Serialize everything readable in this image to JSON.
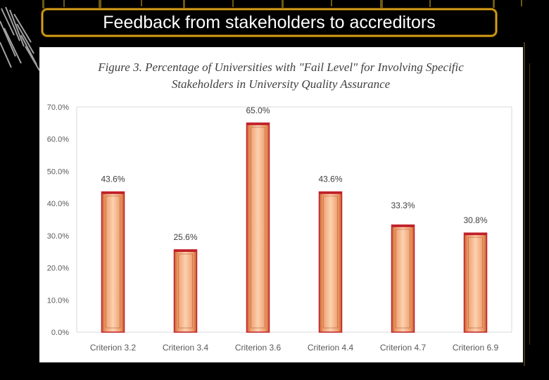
{
  "slide": {
    "title": "Feedback from stakeholders to accreditors"
  },
  "colors": {
    "background": "#000000",
    "title_border": "#d9a21c",
    "bar_fill": "#f0a070",
    "bar_edge": "#c0202a",
    "accent_decor": "#c8a020"
  },
  "figure": {
    "caption_line1": "Figure 3. Percentage of Universities with \"Fail Level\" for Involving Specific",
    "caption_line2": "Stakeholders in University Quality Assurance"
  },
  "chart_data": {
    "type": "bar",
    "title": "Figure 3. Percentage of Universities with \"Fail Level\" for Involving Specific Stakeholders in University Quality Assurance",
    "categories": [
      "Criterion 3.2",
      "Criterion 3.4",
      "Criterion 3.6",
      "Criterion 4.4",
      "Criterion 4.7",
      "Criterion 6.9"
    ],
    "values": [
      43.6,
      25.6,
      65.0,
      43.6,
      33.3,
      30.8
    ],
    "data_labels": [
      "43.6%",
      "25.6%",
      "65.0%",
      "43.6%",
      "33.3%",
      "30.8%"
    ],
    "yticks": [
      "0.0%",
      "10.0%",
      "20.0%",
      "30.0%",
      "40.0%",
      "50.0%",
      "60.0%",
      "70.0%"
    ],
    "ylim": [
      0,
      70
    ],
    "xlabel": "",
    "ylabel": "",
    "grid": false,
    "legend": "none"
  }
}
